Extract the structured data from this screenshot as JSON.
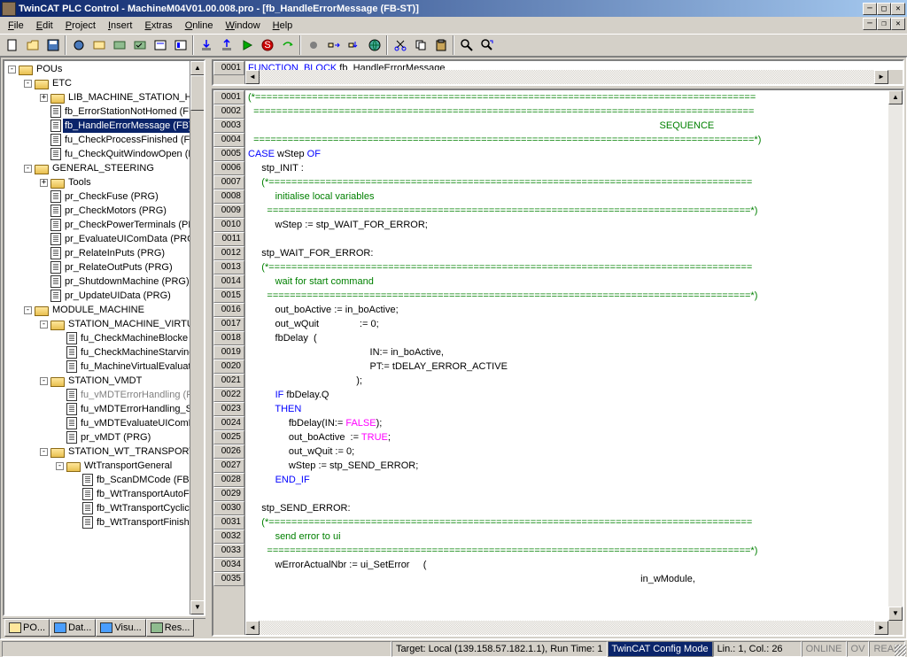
{
  "title": "TwinCAT PLC Control - MachineM04V01.00.008.pro - [fb_HandleErrorMessage (FB-ST)]",
  "menu": [
    "File",
    "Edit",
    "Project",
    "Insert",
    "Extras",
    "Online",
    "Window",
    "Help"
  ],
  "tree": {
    "root": "POUs",
    "items": [
      {
        "d": 0,
        "e": "-",
        "t": "fo",
        "l": "POUs"
      },
      {
        "d": 1,
        "e": "-",
        "t": "fo",
        "l": "ETC"
      },
      {
        "d": 2,
        "e": "+",
        "t": "fc",
        "l": "LIB_MACHINE_STATION_HA"
      },
      {
        "d": 2,
        "e": "",
        "t": "d",
        "l": "fb_ErrorStationNotHomed (FB)"
      },
      {
        "d": 2,
        "e": "",
        "t": "d",
        "l": "fb_HandleErrorMessage (FB)",
        "sel": true
      },
      {
        "d": 2,
        "e": "",
        "t": "d",
        "l": "fu_CheckProcessFinished (FU"
      },
      {
        "d": 2,
        "e": "",
        "t": "d",
        "l": "fu_CheckQuitWindowOpen (F"
      },
      {
        "d": 1,
        "e": "-",
        "t": "fo",
        "l": "GENERAL_STEERING"
      },
      {
        "d": 2,
        "e": "+",
        "t": "fc",
        "l": "Tools"
      },
      {
        "d": 2,
        "e": "",
        "t": "d",
        "l": "pr_CheckFuse (PRG)"
      },
      {
        "d": 2,
        "e": "",
        "t": "d",
        "l": "pr_CheckMotors (PRG)"
      },
      {
        "d": 2,
        "e": "",
        "t": "d",
        "l": "pr_CheckPowerTerminals (PR"
      },
      {
        "d": 2,
        "e": "",
        "t": "d",
        "l": "pr_EvaluateUIComData (PRG"
      },
      {
        "d": 2,
        "e": "",
        "t": "d",
        "l": "pr_RelateInPuts (PRG)"
      },
      {
        "d": 2,
        "e": "",
        "t": "d",
        "l": "pr_RelateOutPuts (PRG)"
      },
      {
        "d": 2,
        "e": "",
        "t": "d",
        "l": "pr_ShutdownMachine (PRG)"
      },
      {
        "d": 2,
        "e": "",
        "t": "d",
        "l": "pr_UpdateUIData (PRG)"
      },
      {
        "d": 1,
        "e": "-",
        "t": "fo",
        "l": "MODULE_MACHINE"
      },
      {
        "d": 2,
        "e": "-",
        "t": "fo",
        "l": "STATION_MACHINE_VIRTU"
      },
      {
        "d": 3,
        "e": "",
        "t": "d",
        "l": "fu_CheckMachineBlocke"
      },
      {
        "d": 3,
        "e": "",
        "t": "d",
        "l": "fu_CheckMachineStarving"
      },
      {
        "d": 3,
        "e": "",
        "t": "d",
        "l": "fu_MachineVirtualEvaluat"
      },
      {
        "d": 2,
        "e": "-",
        "t": "fo",
        "l": "STATION_VMDT"
      },
      {
        "d": 3,
        "e": "",
        "t": "d",
        "l": "fu_vMDTErrorHandling (F",
        "gray": true
      },
      {
        "d": 3,
        "e": "",
        "t": "d",
        "l": "fu_vMDTErrorHandling_S"
      },
      {
        "d": 3,
        "e": "",
        "t": "d",
        "l": "fu_vMDTEvaluateUIComD"
      },
      {
        "d": 3,
        "e": "",
        "t": "d",
        "l": "pr_vMDT (PRG)"
      },
      {
        "d": 2,
        "e": "-",
        "t": "fo",
        "l": "STATION_WT_TRANSPORT"
      },
      {
        "d": 3,
        "e": "-",
        "t": "fo",
        "l": "WtTransportGeneral"
      },
      {
        "d": 4,
        "e": "",
        "t": "d",
        "l": "fb_ScanDMCode (FB"
      },
      {
        "d": 4,
        "e": "",
        "t": "d",
        "l": "fb_WtTransportAutoF"
      },
      {
        "d": 4,
        "e": "",
        "t": "d",
        "l": "fb_WtTransportCyclic"
      },
      {
        "d": 4,
        "e": "",
        "t": "d",
        "l": "fb_WtTransportFinish"
      }
    ],
    "tabs": [
      "PO...",
      "Dat...",
      "Visu...",
      "Res..."
    ]
  },
  "code_top": {
    "start": 1,
    "lines": [
      [
        {
          "c": "kw",
          "t": "FUNCTION_BLOCK"
        },
        {
          "c": "",
          "t": " fb_HandleErrorMessage"
        }
      ]
    ]
  },
  "code_main": {
    "start": 1,
    "lines": [
      [
        {
          "c": "cm",
          "t": "(*========================================================================================"
        }
      ],
      [
        {
          "c": "cm",
          "t": "  ========================================================================================"
        }
      ],
      [
        {
          "c": "cm",
          "t": "                                                                                                                                                        SEQUENCE"
        }
      ],
      [
        {
          "c": "cm",
          "t": "  ========================================================================================*)"
        }
      ],
      [
        {
          "c": "kw",
          "t": "CASE"
        },
        {
          "c": "",
          "t": " wStep "
        },
        {
          "c": "kw",
          "t": "OF"
        }
      ],
      [
        {
          "c": "",
          "t": "     stp_INIT :"
        }
      ],
      [
        {
          "c": "",
          "t": "     "
        },
        {
          "c": "cm",
          "t": "(*====================================================================================="
        }
      ],
      [
        {
          "c": "",
          "t": "          "
        },
        {
          "c": "cm",
          "t": "initialise local variables"
        }
      ],
      [
        {
          "c": "",
          "t": "     "
        },
        {
          "c": "cm",
          "t": "  =====================================================================================*)"
        }
      ],
      [
        {
          "c": "",
          "t": "          wStep := stp_WAIT_FOR_ERROR;"
        }
      ],
      [
        {
          "c": "",
          "t": ""
        }
      ],
      [
        {
          "c": "",
          "t": "     stp_WAIT_FOR_ERROR:"
        }
      ],
      [
        {
          "c": "",
          "t": "     "
        },
        {
          "c": "cm",
          "t": "(*====================================================================================="
        }
      ],
      [
        {
          "c": "",
          "t": "          "
        },
        {
          "c": "cm",
          "t": "wait for start command"
        }
      ],
      [
        {
          "c": "",
          "t": "     "
        },
        {
          "c": "cm",
          "t": "  =====================================================================================*)"
        }
      ],
      [
        {
          "c": "",
          "t": "          out_boActive := in_boActive;"
        }
      ],
      [
        {
          "c": "",
          "t": "          out_wQuit               := 0;"
        }
      ],
      [
        {
          "c": "",
          "t": "          fbDelay  ("
        }
      ],
      [
        {
          "c": "",
          "t": "                                             IN:= in_boActive,"
        }
      ],
      [
        {
          "c": "",
          "t": "                                             PT:= tDELAY_ERROR_ACTIVE"
        }
      ],
      [
        {
          "c": "",
          "t": "                                        );"
        }
      ],
      [
        {
          "c": "",
          "t": "          "
        },
        {
          "c": "kw",
          "t": "IF"
        },
        {
          "c": "",
          "t": " fbDelay.Q"
        }
      ],
      [
        {
          "c": "",
          "t": "          "
        },
        {
          "c": "kw",
          "t": "THEN"
        }
      ],
      [
        {
          "c": "",
          "t": "               fbDelay(IN:= "
        },
        {
          "c": "lit",
          "t": "FALSE"
        },
        {
          "c": "",
          "t": ");"
        }
      ],
      [
        {
          "c": "",
          "t": "               out_boActive  := "
        },
        {
          "c": "lit",
          "t": "TRUE"
        },
        {
          "c": "",
          "t": ";"
        }
      ],
      [
        {
          "c": "",
          "t": "               out_wQuit := 0;"
        }
      ],
      [
        {
          "c": "",
          "t": "               wStep := stp_SEND_ERROR;"
        }
      ],
      [
        {
          "c": "",
          "t": "          "
        },
        {
          "c": "kw",
          "t": "END_IF"
        }
      ],
      [
        {
          "c": "",
          "t": ""
        }
      ],
      [
        {
          "c": "",
          "t": "     stp_SEND_ERROR:"
        }
      ],
      [
        {
          "c": "",
          "t": "     "
        },
        {
          "c": "cm",
          "t": "(*====================================================================================="
        }
      ],
      [
        {
          "c": "",
          "t": "          "
        },
        {
          "c": "cm",
          "t": "send error to ui"
        }
      ],
      [
        {
          "c": "",
          "t": "     "
        },
        {
          "c": "cm",
          "t": "  =====================================================================================*)"
        }
      ],
      [
        {
          "c": "",
          "t": "          wErrorActualNbr := ui_SetError     ("
        }
      ],
      [
        {
          "c": "",
          "t": "                                                                                                                                                 in_wModule,"
        }
      ]
    ]
  },
  "status": {
    "target": "Target: Local (139.158.57.182.1.1), Run Time: 1",
    "mode": "TwinCAT Config Mode",
    "pos": "Lin.: 1, Col.: 26",
    "online": "ONLINE",
    "ov": "OV",
    "read": "READ"
  }
}
